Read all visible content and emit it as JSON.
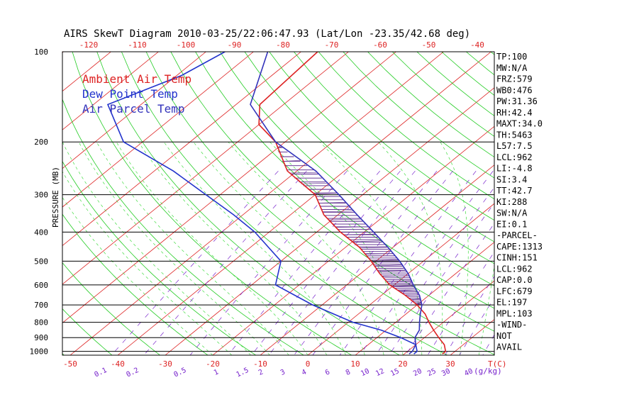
{
  "chart_data": {
    "type": "line",
    "title": "AIRS SkewT Diagram 2010-03-25/22:06:47.93 (Lat/Lon -23.35/42.68 deg)",
    "ylabel": "PRESSURE (MB)",
    "pressure_ticks": [
      "100",
      "200",
      "300",
      "400",
      "500",
      "600",
      "700",
      "800",
      "900",
      "1000"
    ],
    "pressure_range": [
      100,
      1030
    ],
    "bottom_temp_ticks": [
      "-50",
      "-40",
      "-30",
      "-20",
      "-10",
      "0",
      "10",
      "20",
      "30"
    ],
    "bottom_temp_unit": "T(C)",
    "top_temp_ticks": [
      "-120",
      "-110",
      "-100",
      "-90",
      "-80",
      "-70",
      "-60",
      "-50",
      "-40"
    ],
    "mixing_ratio_ticks": [
      "0.1",
      "0.2",
      "0.5",
      "1",
      "1.5",
      "2",
      "3",
      "4",
      "6",
      "8",
      "10",
      "12",
      "15",
      "20",
      "25",
      "30",
      "40"
    ],
    "mixing_ratio_unit": "(g/kg)",
    "legend": [
      {
        "label": "Ambient Air Temp",
        "color": "#dd2222"
      },
      {
        "label": "Dew Point Temp",
        "color": "#2233cc"
      },
      {
        "label": "Air Parcel Temp",
        "color": "#3333bb"
      }
    ],
    "series": [
      {
        "name": "Ambient Air Temp",
        "color": "#dd2222",
        "points": [
          [
            100,
            -76.5
          ],
          [
            150,
            -75
          ],
          [
            175,
            -70
          ],
          [
            200,
            -62
          ],
          [
            250,
            -52
          ],
          [
            300,
            -40
          ],
          [
            350,
            -33
          ],
          [
            400,
            -25
          ],
          [
            450,
            -17
          ],
          [
            500,
            -11
          ],
          [
            550,
            -6
          ],
          [
            600,
            -1
          ],
          [
            650,
            5
          ],
          [
            700,
            10
          ],
          [
            750,
            14
          ],
          [
            800,
            17
          ],
          [
            850,
            20
          ],
          [
            900,
            23
          ],
          [
            950,
            26
          ],
          [
            1000,
            28
          ],
          [
            1020,
            28
          ]
        ]
      },
      {
        "name": "Dew Point Temp",
        "color": "#2233cc",
        "points": [
          [
            100,
            -96
          ],
          [
            120,
            -99
          ],
          [
            150,
            -107
          ],
          [
            200,
            -94
          ],
          [
            250,
            -76
          ],
          [
            300,
            -63
          ],
          [
            350,
            -52
          ],
          [
            400,
            -43
          ],
          [
            500,
            -30
          ],
          [
            600,
            -25
          ],
          [
            700,
            -12
          ],
          [
            800,
            1
          ],
          [
            850,
            9
          ],
          [
            900,
            15
          ],
          [
            950,
            20
          ],
          [
            1000,
            22
          ],
          [
            1020,
            22
          ]
        ]
      },
      {
        "name": "Air Parcel Temp",
        "color": "#3333bb",
        "points": [
          [
            100,
            -87
          ],
          [
            150,
            -77
          ],
          [
            200,
            -62
          ],
          [
            250,
            -46
          ],
          [
            300,
            -35
          ],
          [
            350,
            -26
          ],
          [
            400,
            -18
          ],
          [
            450,
            -11
          ],
          [
            500,
            -5
          ],
          [
            550,
            0
          ],
          [
            600,
            4
          ],
          [
            650,
            8
          ],
          [
            700,
            11
          ],
          [
            750,
            13
          ],
          [
            800,
            15
          ],
          [
            850,
            17
          ],
          [
            900,
            18
          ],
          [
            950,
            20
          ],
          [
            1000,
            21
          ],
          [
            1020,
            21
          ]
        ]
      }
    ],
    "grid": true
  },
  "indices": [
    "TP:100",
    "MW:N/A",
    "FRZ:579",
    "WB0:476",
    "PW:31.36",
    "RH:42.4",
    "MAXT:34.0",
    "TH:5463",
    "L57:7.5",
    "LCL:962",
    "LI:-4.8",
    "SI:3.4",
    "TT:42.7",
    "KI:288",
    "SW:N/A",
    "EI:0.1",
    "-PARCEL-",
    "CAPE:1313",
    "CINH:151",
    "LCL:962",
    "CAP:0.0",
    "LFC:679",
    "EL:197",
    "MPL:103",
    "-WIND-",
    "NOT",
    "AVAIL"
  ],
  "colors": {
    "isotherm": "#dd2222",
    "dry_adiabat": "#22cc22",
    "moist_adiabat": "#44dd44",
    "mixing_ratio": "#7722cc",
    "axis": "#000000",
    "hatch": "#552288"
  }
}
